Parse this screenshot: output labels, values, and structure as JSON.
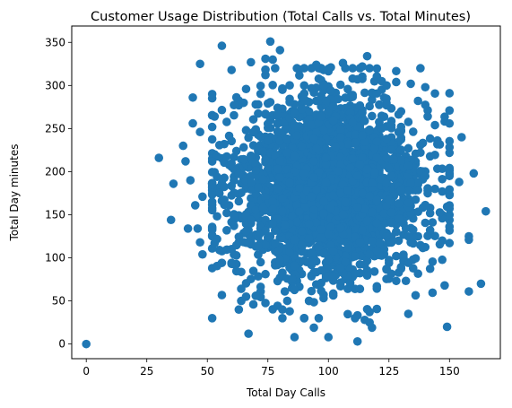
{
  "chart_data": {
    "type": "scatter",
    "title": "Customer Usage Distribution (Total Calls vs. Total Minutes)",
    "xlabel": "Total Day Calls",
    "ylabel": "Total Day minutes",
    "xlim": [
      -6,
      171
    ],
    "ylim": [
      -17,
      369
    ],
    "xticks": [
      0,
      25,
      50,
      75,
      100,
      125,
      150
    ],
    "yticks": [
      0,
      50,
      100,
      150,
      200,
      250,
      300,
      350
    ],
    "grid": false,
    "marker_color": "#1f77b4",
    "series": [
      {
        "points": [
          [
            0,
            0
          ],
          [
            30,
            216
          ],
          [
            35,
            144
          ],
          [
            36,
            186
          ],
          [
            40,
            230
          ],
          [
            41,
            212
          ],
          [
            42,
            134
          ],
          [
            43,
            190
          ],
          [
            44,
            286
          ],
          [
            44,
            256
          ],
          [
            45,
            161
          ],
          [
            46,
            134
          ],
          [
            47,
            325
          ],
          [
            47,
            246
          ],
          [
            47,
            118
          ],
          [
            48,
            104
          ],
          [
            48,
            171
          ],
          [
            52,
            290
          ],
          [
            53,
            264
          ],
          [
            56,
            346
          ],
          [
            57,
            232
          ],
          [
            60,
            318
          ],
          [
            62,
            224
          ],
          [
            63,
            40
          ],
          [
            64,
            50
          ],
          [
            66,
            55
          ],
          [
            67,
            12
          ],
          [
            68,
            327
          ],
          [
            70,
            56
          ],
          [
            72,
            95
          ],
          [
            74,
            331
          ],
          [
            76,
            351
          ],
          [
            77,
            330
          ],
          [
            80,
            341
          ],
          [
            81,
            40
          ],
          [
            81,
            295
          ],
          [
            84,
            38
          ],
          [
            86,
            8
          ],
          [
            90,
            300
          ],
          [
            92,
            50
          ],
          [
            94,
            19
          ],
          [
            95,
            324
          ],
          [
            98,
            300
          ],
          [
            98,
            318
          ],
          [
            100,
            8
          ],
          [
            101,
            321
          ],
          [
            106,
            326
          ],
          [
            110,
            308
          ],
          [
            112,
            3
          ],
          [
            114,
            322
          ],
          [
            115,
            28
          ],
          [
            116,
            334
          ],
          [
            117,
            25
          ],
          [
            118,
            19
          ],
          [
            122,
            305
          ],
          [
            124,
            300
          ],
          [
            128,
            304
          ],
          [
            133,
            35
          ],
          [
            134,
            302
          ],
          [
            140,
            298
          ],
          [
            144,
            254
          ],
          [
            147,
            120
          ],
          [
            148,
            68
          ],
          [
            149,
            20
          ],
          [
            150,
            291
          ],
          [
            150,
            271
          ],
          [
            154,
            188
          ],
          [
            155,
            240
          ],
          [
            158,
            125
          ],
          [
            158,
            121
          ],
          [
            158,
            61
          ],
          [
            160,
            198
          ],
          [
            163,
            70
          ],
          [
            165,
            154
          ]
        ],
        "cloud": {
          "count": 2600,
          "x_mean": 100,
          "x_sd": 20,
          "y_mean": 180,
          "y_sd": 54,
          "x_range": [
            52,
            150
          ],
          "y_range": [
            30,
            320
          ]
        }
      }
    ]
  }
}
